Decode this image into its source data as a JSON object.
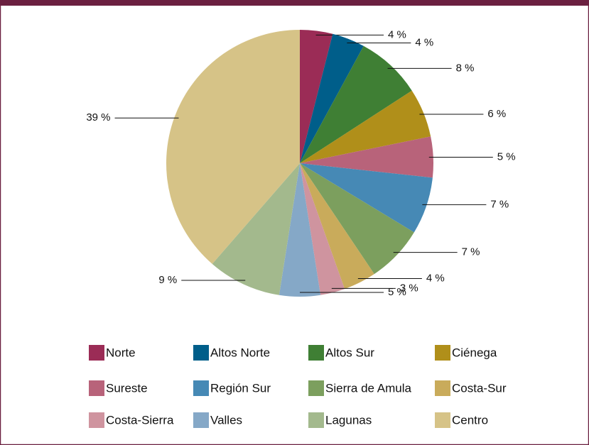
{
  "chart_data": {
    "type": "pie",
    "categories": [
      "Norte",
      "Altos Norte",
      "Altos Sur",
      "Ciénega",
      "Sureste",
      "Región Sur",
      "Sierra de Amula",
      "Costa-Sur",
      "Costa-Sierra",
      "Valles",
      "Lagunas",
      "Centro"
    ],
    "values": [
      4,
      4,
      8,
      6,
      5,
      7,
      7,
      4,
      3,
      5,
      9,
      39
    ],
    "value_labels": [
      "4 %",
      "4 %",
      "8 %",
      "6 %",
      "5 %",
      "7 %",
      "7 %",
      "4 %",
      "3 %",
      "5 %",
      "9 %",
      "39 %"
    ],
    "colors": [
      "#9b2c56",
      "#005e8a",
      "#3f7f34",
      "#b08f1a",
      "#b8637a",
      "#4689b5",
      "#7c9f5e",
      "#c9ab5b",
      "#cf949f",
      "#85a8c7",
      "#a3b98d",
      "#d6c387"
    ],
    "legend": "bottom"
  }
}
